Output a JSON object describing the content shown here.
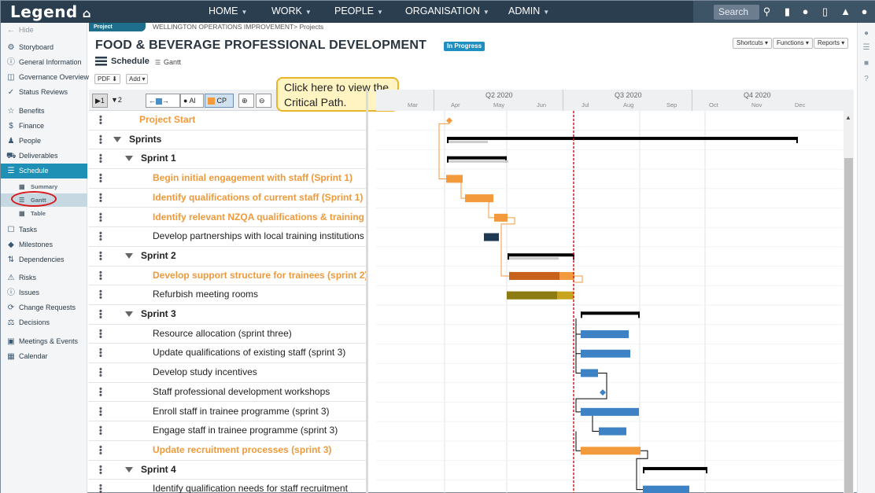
{
  "app": {
    "name": "Legend"
  },
  "topnav": [
    {
      "label": "HOME"
    },
    {
      "label": "WORK"
    },
    {
      "label": "PEOPLE"
    },
    {
      "label": "ORGANISATION"
    },
    {
      "label": "ADMIN"
    }
  ],
  "search": {
    "placeholder": "Search"
  },
  "sidebar": {
    "hide": "Hide",
    "items": [
      {
        "label": "Storyboard",
        "icon": "storyboard-icon"
      },
      {
        "label": "General Information",
        "icon": "info-icon"
      },
      {
        "label": "Governance Overview",
        "icon": "governance-icon"
      },
      {
        "label": "Status Reviews",
        "icon": "check-icon"
      },
      {
        "label": "Benefits",
        "icon": "star-icon"
      },
      {
        "label": "Finance",
        "icon": "dollar-icon"
      },
      {
        "label": "People",
        "icon": "people-icon"
      },
      {
        "label": "Deliverables",
        "icon": "truck-icon"
      },
      {
        "label": "Schedule",
        "icon": "schedule-icon"
      },
      {
        "label": "Tasks",
        "icon": "tasks-icon"
      },
      {
        "label": "Milestones",
        "icon": "diamond-icon"
      },
      {
        "label": "Dependencies",
        "icon": "dependencies-icon"
      },
      {
        "label": "Risks",
        "icon": "warning-icon"
      },
      {
        "label": "Issues",
        "icon": "issue-icon"
      },
      {
        "label": "Change Requests",
        "icon": "change-icon"
      },
      {
        "label": "Decisions",
        "icon": "decision-icon"
      },
      {
        "label": "Meetings & Events",
        "icon": "calendar-check-icon"
      },
      {
        "label": "Calendar",
        "icon": "calendar-icon"
      }
    ],
    "schedule_sub": [
      {
        "label": "Summary"
      },
      {
        "label": "Gantt"
      },
      {
        "label": "Table"
      }
    ]
  },
  "header": {
    "tag": "Project",
    "breadcrumb": "WELLINGTON OPERATIONS IMPROVEMENT> Projects",
    "title": "FOOD & BEVERAGE PROFESSIONAL DEVELOPMENT",
    "status": "In Progress",
    "shortcuts": "Shortcuts",
    "functions": "Functions",
    "reports": "Reports",
    "schedule": "Schedule",
    "gantt": "Gantt",
    "pdf": "PDF",
    "add": "Add"
  },
  "toolbar": {
    "all": "Al",
    "cp": "CP"
  },
  "callout": {
    "text": "Click here to view the Critical Path."
  },
  "timeline": {
    "quarters": [
      "Q2 2020",
      "Q3 2020",
      "Q4 2020"
    ],
    "months": [
      "Mar",
      "Apr",
      "May",
      "Jun",
      "Jul",
      "Aug",
      "Sep",
      "Oct",
      "Nov",
      "Dec"
    ]
  },
  "tasks": [
    {
      "name": "Project Start",
      "level": 1,
      "style": "orange",
      "group": false
    },
    {
      "name": "Sprints",
      "level": 0,
      "style": "bold",
      "group": true
    },
    {
      "name": "Sprint 1",
      "level": 1,
      "style": "bold",
      "group": true
    },
    {
      "name": "Begin initial engagement with staff (Sprint 1)",
      "level": 2,
      "style": "orange",
      "group": false
    },
    {
      "name": "Identify qualifications of current staff (Sprint 1)",
      "level": 2,
      "style": "orange",
      "group": false
    },
    {
      "name": "Identify relevant NZQA qualifications & training",
      "level": 2,
      "style": "orange",
      "group": false
    },
    {
      "name": "Develop partnerships with local training institutions",
      "level": 2,
      "style": "normal",
      "group": false
    },
    {
      "name": "Sprint 2",
      "level": 1,
      "style": "bold",
      "group": true
    },
    {
      "name": "Develop support structure for trainees (sprint 2)",
      "level": 2,
      "style": "orange",
      "group": false
    },
    {
      "name": "Refurbish meeting rooms",
      "level": 2,
      "style": "normal",
      "group": false
    },
    {
      "name": "Sprint 3",
      "level": 1,
      "style": "bold",
      "group": true
    },
    {
      "name": "Resource allocation (sprint three)",
      "level": 2,
      "style": "normal",
      "group": false
    },
    {
      "name": "Update qualifications of existing staff (sprint 3)",
      "level": 2,
      "style": "normal",
      "group": false
    },
    {
      "name": "Develop study incentives",
      "level": 2,
      "style": "normal",
      "group": false
    },
    {
      "name": "Staff professional development workshops",
      "level": 2,
      "style": "normal",
      "group": false
    },
    {
      "name": "Enroll staff in trainee programme (sprint 3)",
      "level": 2,
      "style": "normal",
      "group": false
    },
    {
      "name": "Engage staff in trainee programme (sprint 3)",
      "level": 2,
      "style": "normal",
      "group": false
    },
    {
      "name": "Update recruitment processes (sprint 3)",
      "level": 2,
      "style": "orange",
      "group": false
    },
    {
      "name": "Sprint 4",
      "level": 1,
      "style": "bold",
      "group": true
    },
    {
      "name": "Identify qualification needs for staff recruitment",
      "level": 2,
      "style": "normal",
      "group": false
    }
  ],
  "colors": {
    "critical": "#f29a3c",
    "normal": "#3d82c4",
    "summary": "#000000",
    "progress": "#cccccc",
    "today": "#d8191e",
    "dark": "#1e3a52",
    "olive": "#8c7a12",
    "criticalDark": "#c7611b"
  }
}
